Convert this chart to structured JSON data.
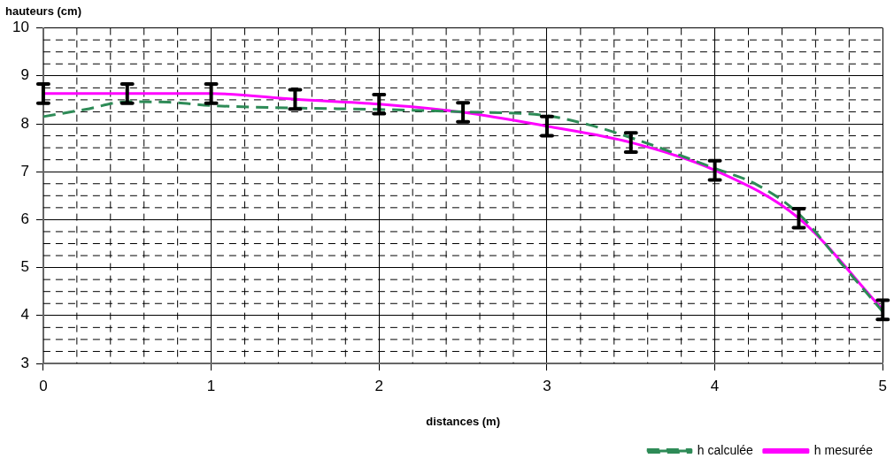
{
  "chart_data": {
    "type": "line",
    "xlabel": "distances (m)",
    "ylabel": "hauteurs (cm)",
    "xlim": [
      0,
      5
    ],
    "ylim": [
      3,
      10
    ],
    "xticks": [
      0,
      {
        "value": 0.2,
        "label": null
      },
      {
        "value": 0.4,
        "label": null
      },
      {
        "value": 0.6,
        "label": null
      },
      {
        "value": 0.8,
        "label": null
      },
      1,
      {
        "value": 1.2,
        "label": null
      },
      {
        "value": 1.4,
        "label": null
      },
      {
        "value": 1.6,
        "label": null
      },
      {
        "value": 1.8,
        "label": null
      },
      2,
      {
        "value": 2.2,
        "label": null
      },
      {
        "value": 2.4,
        "label": null
      },
      {
        "value": 2.6,
        "label": null
      },
      {
        "value": 2.8,
        "label": null
      },
      3,
      {
        "value": 3.2,
        "label": null
      },
      {
        "value": 3.4,
        "label": null
      },
      {
        "value": 3.6,
        "label": null
      },
      {
        "value": 3.8,
        "label": null
      },
      4,
      {
        "value": 4.2,
        "label": null
      },
      {
        "value": 4.4,
        "label": null
      },
      {
        "value": 4.6,
        "label": null
      },
      {
        "value": 4.8,
        "label": null
      },
      5
    ],
    "yticks": [
      3,
      {
        "value": 3.25,
        "label": null
      },
      {
        "value": 3.5,
        "label": null
      },
      {
        "value": 3.75,
        "label": null
      },
      4,
      {
        "value": 4.25,
        "label": null
      },
      {
        "value": 4.5,
        "label": null
      },
      {
        "value": 4.75,
        "label": null
      },
      5,
      {
        "value": 5.25,
        "label": null
      },
      {
        "value": 5.5,
        "label": null
      },
      {
        "value": 5.75,
        "label": null
      },
      6,
      {
        "value": 6.25,
        "label": null
      },
      {
        "value": 6.5,
        "label": null
      },
      {
        "value": 6.75,
        "label": null
      },
      7,
      {
        "value": 7.25,
        "label": null
      },
      {
        "value": 7.5,
        "label": null
      },
      {
        "value": 7.75,
        "label": null
      },
      8,
      {
        "value": 8.25,
        "label": null
      },
      {
        "value": 8.5,
        "label": null
      },
      {
        "value": 8.75,
        "label": null
      },
      9,
      {
        "value": 9.25,
        "label": null
      },
      {
        "value": 9.5,
        "label": null
      },
      {
        "value": 9.75,
        "label": null
      },
      10
    ],
    "grid": true,
    "legend": "bottom right",
    "marker": "none",
    "series": [
      {
        "name": "h calculée",
        "color": "#2e8b57",
        "line_style": "dashed",
        "x": [
          0,
          0.25,
          0.5,
          0.75,
          1,
          1.5,
          2,
          2.5,
          3,
          3.25,
          3.5,
          4,
          4.25,
          4.5,
          4.75,
          5
        ],
        "values": [
          8.15,
          8.3,
          8.46,
          8.45,
          8.38,
          8.33,
          8.3,
          8.25,
          8.17,
          7.98,
          7.71,
          7.07,
          6.73,
          6.12,
          5.1,
          4.08
        ]
      },
      {
        "name": "h mesurée",
        "color": "#ff00ff",
        "line_style": "solid",
        "x": [
          0,
          0.5,
          1,
          1.5,
          2,
          2.5,
          3,
          3.5,
          4,
          4.5,
          5
        ],
        "values": [
          8.63,
          8.63,
          8.63,
          8.51,
          8.41,
          8.24,
          7.95,
          7.61,
          7.03,
          6.03,
          4.12
        ],
        "errors": [
          0.2,
          0.2,
          0.2,
          0.2,
          0.2,
          0.2,
          0.2,
          0.2,
          0.2,
          0.2,
          0.2
        ]
      }
    ]
  }
}
